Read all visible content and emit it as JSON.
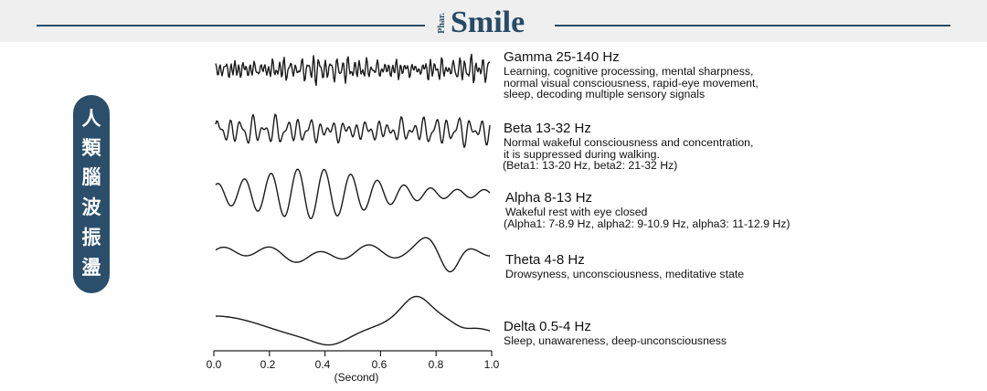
{
  "header": {
    "brand_small": "Phar.",
    "brand_main": "Smile"
  },
  "side_title": [
    "人",
    "類",
    "腦",
    "波",
    "振",
    "盪"
  ],
  "bands": [
    {
      "title": "Gamma 25-140 Hz",
      "desc": [
        "Learning, cognitive processing, mental sharpness,",
        "normal visual consciousness, rapid-eye movement,",
        "sleep, decoding multiple sensory signals"
      ]
    },
    {
      "title": "Beta 13-32 Hz",
      "desc": [
        "Normal wakeful consciousness and concentration,",
        "it is suppressed during walking.",
        "(Beta1: 13-20 Hz, beta2: 21-32 Hz)"
      ]
    },
    {
      "title": "Alpha 8-13 Hz",
      "desc": [
        "Wakeful rest with eye closed",
        "(Alpha1: 7-8.9 Hz, alpha2: 9-10.9 Hz, alpha3: 11-12.9 Hz)"
      ]
    },
    {
      "title": "Theta 4-8 Hz",
      "desc": [
        "Drowsyness, unconsciousness, meditative state"
      ]
    },
    {
      "title": "Delta 0.5-4 Hz",
      "desc": [
        "Sleep, unawareness, deep-unconsciousness"
      ]
    }
  ],
  "axis": {
    "ticks": [
      "0.0",
      "0.2",
      "0.4",
      "0.6",
      "0.8",
      "1.0"
    ],
    "label": "(Second)"
  },
  "colors": {
    "brand": "#274a66",
    "header_bg": "#efefef",
    "pill": "#2b4e6b"
  }
}
